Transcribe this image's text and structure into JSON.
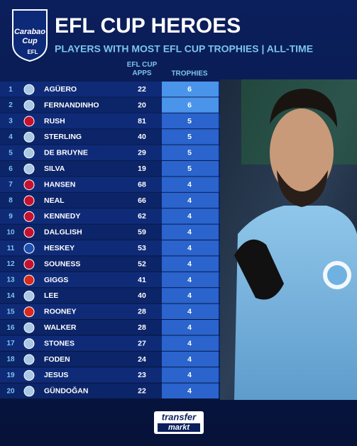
{
  "header": {
    "logo_top": "Carabao",
    "logo_bottom": "Cup",
    "logo_badge": "EFL",
    "title": "EFL CUP HEROES",
    "subtitle": "PLAYERS WITH MOST EFL CUP TROPHIES | ALL-TIME"
  },
  "table": {
    "columns": [
      "EFL CUP APPS",
      "TROPHIES"
    ],
    "rows": [
      [
        1,
        "AGÜERO",
        22,
        6
      ],
      [
        2,
        "FERNANDINHO",
        20,
        6
      ],
      [
        3,
        "RUSH",
        81,
        5
      ],
      [
        4,
        "STERLING",
        40,
        5
      ],
      [
        5,
        "DE BRUYNE",
        29,
        5
      ],
      [
        6,
        "SILVA",
        19,
        5
      ],
      [
        7,
        "HANSEN",
        68,
        4
      ],
      [
        8,
        "NEAL",
        66,
        4
      ],
      [
        9,
        "KENNEDY",
        62,
        4
      ],
      [
        10,
        "DALGLISH",
        59,
        4
      ],
      [
        11,
        "HESKEY",
        53,
        4
      ],
      [
        12,
        "SOUNESS",
        52,
        4
      ],
      [
        13,
        "GIGGS",
        41,
        4
      ],
      [
        14,
        "LEE",
        40,
        4
      ],
      [
        15,
        "ROONEY",
        28,
        4
      ],
      [
        16,
        "WALKER",
        28,
        4
      ],
      [
        17,
        "STONES",
        27,
        4
      ],
      [
        18,
        "FODEN",
        24,
        4
      ],
      [
        19,
        "JESUS",
        23,
        4
      ],
      [
        20,
        "GÜNDOĞAN",
        22,
        4
      ]
    ],
    "crest_colors": [
      "#a9c8e6",
      "#a9c8e6",
      "#c8102e",
      "#a9c8e6",
      "#a9c8e6",
      "#a9c8e6",
      "#c8102e",
      "#c8102e",
      "#c8102e",
      "#c8102e",
      "#1d4fb0",
      "#c8102e",
      "#da291c",
      "#a9c8e6",
      "#da291c",
      "#a9c8e6",
      "#a9c8e6",
      "#a9c8e6",
      "#a9c8e6",
      "#a9c8e6"
    ]
  },
  "footer": {
    "logo_top": "transfer",
    "logo_bottom": "markt"
  }
}
